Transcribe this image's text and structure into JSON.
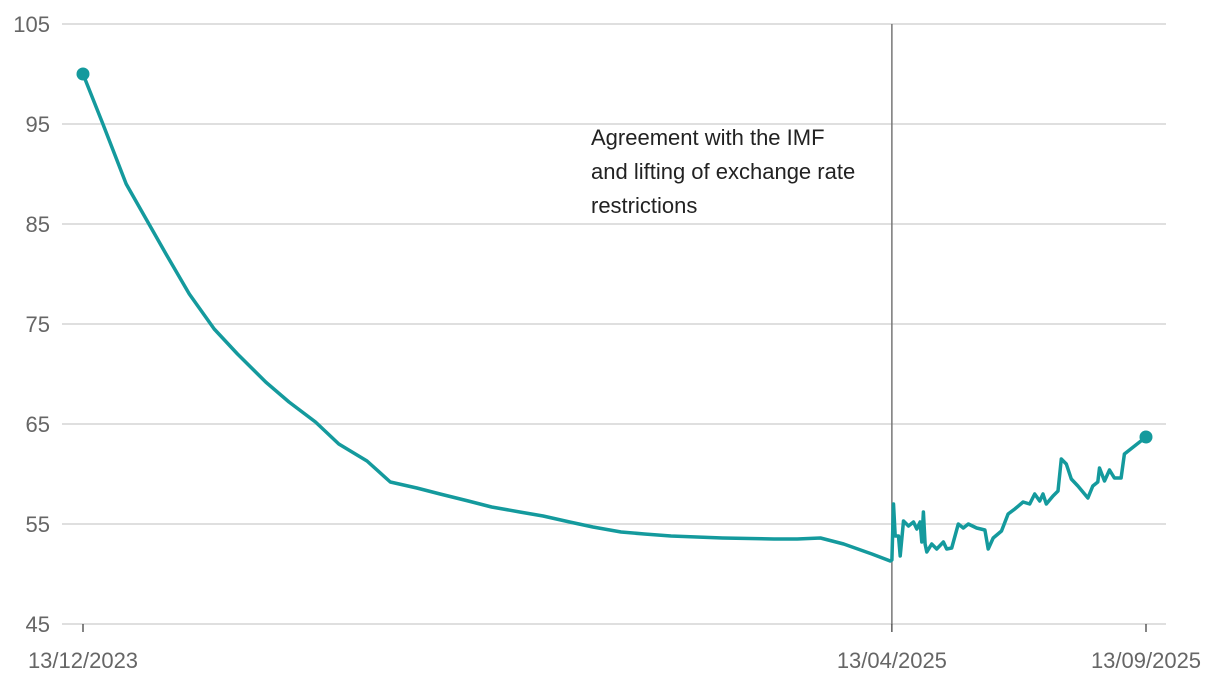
{
  "chart_data": {
    "type": "line",
    "title": "",
    "xlabel": "",
    "ylabel": "",
    "ylim": [
      45,
      105
    ],
    "y_ticks": [
      "105",
      "95",
      "85",
      "75",
      "65",
      "55",
      "45"
    ],
    "y_tick_values": [
      105,
      95,
      85,
      75,
      65,
      55,
      45
    ],
    "x_ticks": [
      {
        "label": "13/12/2023",
        "date": "2023-12-13"
      },
      {
        "label": "13/04/2025",
        "date": "2025-04-13"
      },
      {
        "label": "13/09/2025",
        "date": "2025-09-13"
      }
    ],
    "grid": true,
    "line_color": "#149a9d",
    "annotation": {
      "date": "2025-04-13",
      "lines": [
        "Agreement with the IMF",
        "and lifting of exchange rate",
        "restrictions"
      ]
    },
    "series": [
      {
        "points": [
          [
            "2023-12-13",
            100.0
          ],
          [
            "2023-12-25",
            95.0
          ],
          [
            "2024-01-08",
            89.0
          ],
          [
            "2024-01-20",
            85.5
          ],
          [
            "2024-02-01",
            82.0
          ],
          [
            "2024-02-15",
            78.0
          ],
          [
            "2024-03-01",
            74.5
          ],
          [
            "2024-03-15",
            72.0
          ],
          [
            "2024-04-01",
            69.2
          ],
          [
            "2024-04-15",
            67.2
          ],
          [
            "2024-05-01",
            65.2
          ],
          [
            "2024-05-15",
            63.0
          ],
          [
            "2024-06-01",
            61.3
          ],
          [
            "2024-06-15",
            59.2
          ],
          [
            "2024-07-01",
            58.6
          ],
          [
            "2024-07-15",
            58.0
          ],
          [
            "2024-08-01",
            57.3
          ],
          [
            "2024-08-15",
            56.7
          ],
          [
            "2024-09-01",
            56.2
          ],
          [
            "2024-09-15",
            55.8
          ],
          [
            "2024-10-01",
            55.2
          ],
          [
            "2024-10-15",
            54.7
          ],
          [
            "2024-11-01",
            54.2
          ],
          [
            "2024-11-15",
            54.0
          ],
          [
            "2024-12-01",
            53.8
          ],
          [
            "2025-01-01",
            53.6
          ],
          [
            "2025-02-01",
            53.5
          ],
          [
            "2025-02-15",
            53.5
          ],
          [
            "2025-03-01",
            53.6
          ],
          [
            "2025-03-15",
            53.0
          ],
          [
            "2025-04-01",
            52.0
          ],
          [
            "2025-04-12",
            51.3
          ],
          [
            "2025-04-13",
            51.4
          ],
          [
            "2025-04-14",
            57.0
          ],
          [
            "2025-04-15",
            53.8
          ],
          [
            "2025-04-17",
            53.8
          ],
          [
            "2025-04-18",
            51.8
          ],
          [
            "2025-04-20",
            55.3
          ],
          [
            "2025-04-23",
            54.8
          ],
          [
            "2025-04-26",
            55.2
          ],
          [
            "2025-04-28",
            54.5
          ],
          [
            "2025-04-30",
            55.2
          ],
          [
            "2025-05-01",
            53.2
          ],
          [
            "2025-05-02",
            56.2
          ],
          [
            "2025-05-03",
            53.0
          ],
          [
            "2025-05-04",
            52.2
          ],
          [
            "2025-05-07",
            53.0
          ],
          [
            "2025-05-10",
            52.5
          ],
          [
            "2025-05-14",
            53.2
          ],
          [
            "2025-05-16",
            52.5
          ],
          [
            "2025-05-19",
            52.6
          ],
          [
            "2025-05-23",
            55.0
          ],
          [
            "2025-05-26",
            54.6
          ],
          [
            "2025-05-29",
            55.0
          ],
          [
            "2025-06-03",
            54.6
          ],
          [
            "2025-06-08",
            54.4
          ],
          [
            "2025-06-10",
            52.5
          ],
          [
            "2025-06-13",
            53.6
          ],
          [
            "2025-06-18",
            54.3
          ],
          [
            "2025-06-22",
            56.0
          ],
          [
            "2025-06-26",
            56.5
          ],
          [
            "2025-07-01",
            57.2
          ],
          [
            "2025-07-05",
            57.0
          ],
          [
            "2025-07-08",
            58.0
          ],
          [
            "2025-07-11",
            57.3
          ],
          [
            "2025-07-13",
            58.0
          ],
          [
            "2025-07-15",
            57.0
          ],
          [
            "2025-07-19",
            57.8
          ],
          [
            "2025-07-22",
            58.3
          ],
          [
            "2025-07-24",
            61.5
          ],
          [
            "2025-07-27",
            61.0
          ],
          [
            "2025-07-30",
            59.5
          ],
          [
            "2025-08-03",
            58.8
          ],
          [
            "2025-08-06",
            58.2
          ],
          [
            "2025-08-09",
            57.6
          ],
          [
            "2025-08-12",
            58.8
          ],
          [
            "2025-08-15",
            59.2
          ],
          [
            "2025-08-16",
            60.6
          ],
          [
            "2025-08-19",
            59.3
          ],
          [
            "2025-08-22",
            60.4
          ],
          [
            "2025-08-25",
            59.6
          ],
          [
            "2025-08-29",
            59.6
          ],
          [
            "2025-08-31",
            62.0
          ],
          [
            "2025-09-13",
            63.7
          ]
        ]
      }
    ]
  }
}
